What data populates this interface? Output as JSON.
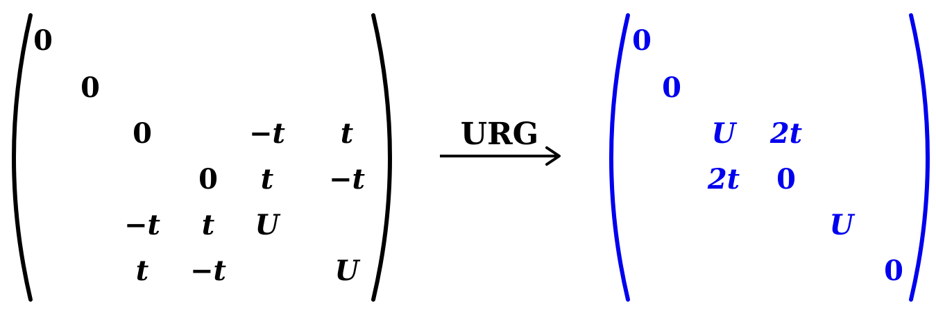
{
  "left_matrix": {
    "color": "#000000",
    "rows": [
      [
        "0",
        "",
        "",
        "",
        "",
        ""
      ],
      [
        "",
        "0",
        "",
        "",
        "",
        ""
      ],
      [
        "",
        "",
        "0",
        "",
        "−t",
        "t"
      ],
      [
        "",
        "",
        "",
        "0",
        "t",
        "−t"
      ],
      [
        "",
        "",
        "−t",
        "t",
        "U",
        ""
      ],
      [
        "",
        "",
        "t",
        "−t",
        "",
        "U"
      ]
    ]
  },
  "arrow": {
    "label": "URG",
    "color": "#000000"
  },
  "right_matrix": {
    "color": "#0000ee",
    "rows": [
      [
        "0",
        "",
        "",
        "",
        "",
        ""
      ],
      [
        "",
        "0",
        "",
        "",
        "",
        ""
      ],
      [
        "",
        "",
        "U",
        "2t",
        "",
        ""
      ],
      [
        "",
        "",
        "2t",
        "0",
        "",
        ""
      ],
      [
        "",
        "",
        "",
        "",
        "U",
        ""
      ],
      [
        "",
        "",
        "",
        "",
        "",
        "0"
      ]
    ]
  }
}
